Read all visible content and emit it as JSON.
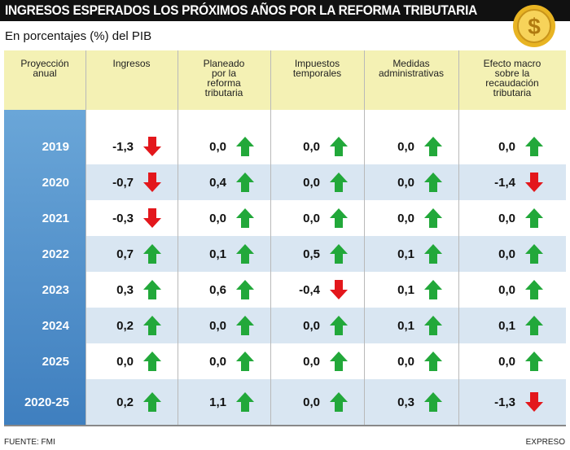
{
  "header": {
    "title": "INGRESOS ESPERADOS LOS PRÓXIMOS AÑOS POR LA REFORMA TRIBUTARIA",
    "subtitle": "En porcentajes (%)  del PIB"
  },
  "table": {
    "headers": [
      "Proyección anual",
      "Ingresos",
      "Planeado por la reforma tributaria",
      "Impuestos temporales",
      "Medidas administrativas",
      "Efecto macro sobre la recaudación tributaria"
    ],
    "rows": [
      [
        "2019",
        "-1,3",
        "0,0",
        "0,0",
        "0,0",
        "0,0"
      ],
      [
        "2020",
        "-0,7",
        "0,4",
        "0,0",
        "0,0",
        "-1,4"
      ],
      [
        "2021",
        "-0,3",
        "0,0",
        "0,0",
        "0,0",
        "0,0"
      ],
      [
        "2022",
        "0,7",
        "0,1",
        "0,5",
        "0,1",
        "0,0"
      ],
      [
        "2023",
        "0,3",
        "0,6",
        "-0,4",
        "0,1",
        "0,0"
      ],
      [
        "2024",
        "0,2",
        "0,0",
        "0,0",
        "0,1",
        "0,1"
      ],
      [
        "2025",
        "0,0",
        "0,0",
        "0,0",
        "0,0",
        "0,0"
      ],
      [
        "2020-25",
        "0,2",
        "1,1",
        "0,0",
        "0,3",
        "-1,3"
      ]
    ]
  },
  "footer": {
    "source": "FUENTE: FMI",
    "brand": "EXPRESO"
  }
}
